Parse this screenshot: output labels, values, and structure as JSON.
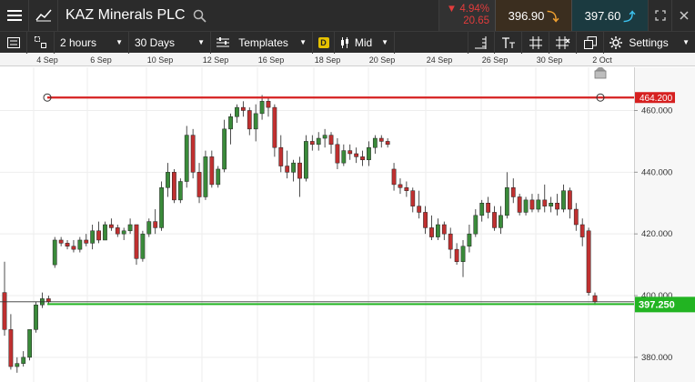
{
  "header": {
    "instrument_name": "KAZ Minerals PLC",
    "change_percent": "4.94%",
    "change_value": "20.65",
    "sell_price": "396.90",
    "buy_price": "397.60"
  },
  "toolbar": {
    "interval": "2 hours",
    "range": "30 Days",
    "templates_label": "Templates",
    "price_type_badge": "D",
    "price_type": "Mid",
    "settings_label": "Settings"
  },
  "chart_data": {
    "type": "candlestick",
    "x_tick_labels": [
      "4 Sep",
      "6 Sep",
      "10 Sep",
      "12 Sep",
      "16 Sep",
      "18 Sep",
      "20 Sep",
      "24 Sep",
      "26 Sep",
      "30 Sep",
      "2 Oct"
    ],
    "y_tick_labels": [
      "460.000",
      "440.000",
      "420.000",
      "400.000",
      "380.000"
    ],
    "y_ticks": [
      460,
      440,
      420,
      400,
      380
    ],
    "ylim": [
      372,
      474
    ],
    "upper_line": {
      "value": 464.2,
      "label": "464.200",
      "color": "#d62020"
    },
    "lower_line": {
      "value": 397.25,
      "label": "397.250",
      "color": "#22b422"
    },
    "current_line": {
      "value": 398.0
    },
    "up_color": "#3a8a3a",
    "down_color": "#c03030",
    "candles": [
      [
        401,
        411,
        387,
        389
      ],
      [
        389,
        394,
        376,
        377
      ],
      [
        377,
        380,
        375,
        378
      ],
      [
        378,
        382,
        377,
        380
      ],
      [
        380,
        389,
        379,
        389
      ],
      [
        389,
        398,
        388,
        397
      ],
      [
        397,
        401,
        396,
        399
      ],
      [
        399,
        400,
        397,
        398
      ],
      [
        410,
        419,
        409,
        418
      ],
      [
        418,
        419,
        416,
        417
      ],
      [
        417,
        418,
        415,
        416
      ],
      [
        416,
        418,
        414,
        415
      ],
      [
        415,
        419,
        414,
        418
      ],
      [
        418,
        420,
        416,
        417
      ],
      [
        417,
        423,
        415,
        421
      ],
      [
        421,
        424,
        417,
        418
      ],
      [
        418,
        424,
        418,
        423
      ],
      [
        423,
        425,
        421,
        422
      ],
      [
        422,
        423,
        419,
        420
      ],
      [
        420,
        422,
        418,
        421
      ],
      [
        421,
        425,
        420,
        423
      ],
      [
        423,
        423,
        410,
        412
      ],
      [
        412,
        421,
        411,
        420
      ],
      [
        420,
        425,
        419,
        424
      ],
      [
        424,
        428,
        420,
        422
      ],
      [
        422,
        437,
        421,
        435
      ],
      [
        435,
        443,
        432,
        440
      ],
      [
        440,
        441,
        430,
        431
      ],
      [
        431,
        438,
        430,
        437
      ],
      [
        437,
        455,
        435,
        452
      ],
      [
        452,
        454,
        438,
        440
      ],
      [
        440,
        443,
        430,
        432
      ],
      [
        432,
        447,
        431,
        445
      ],
      [
        445,
        447,
        435,
        436
      ],
      [
        436,
        442,
        435,
        441
      ],
      [
        441,
        457,
        440,
        454
      ],
      [
        454,
        459,
        449,
        458
      ],
      [
        458,
        462,
        456,
        461
      ],
      [
        461,
        463,
        458,
        460
      ],
      [
        460,
        461,
        452,
        454
      ],
      [
        454,
        462,
        450,
        459
      ],
      [
        459,
        465,
        457,
        463
      ],
      [
        463,
        464,
        458,
        461
      ],
      [
        461,
        462,
        445,
        448
      ],
      [
        448,
        452,
        440,
        442
      ],
      [
        442,
        447,
        438,
        440
      ],
      [
        440,
        444,
        437,
        443
      ],
      [
        443,
        445,
        432,
        438
      ],
      [
        438,
        452,
        437,
        450
      ],
      [
        450,
        452,
        447,
        449
      ],
      [
        449,
        453,
        447,
        451
      ],
      [
        451,
        454,
        448,
        452
      ],
      [
        452,
        453,
        446,
        449
      ],
      [
        449,
        451,
        441,
        443
      ],
      [
        443,
        449,
        442,
        447
      ],
      [
        447,
        449,
        444,
        446
      ],
      [
        446,
        448,
        443,
        445
      ],
      [
        445,
        447,
        442,
        444
      ],
      [
        444,
        450,
        442,
        448
      ],
      [
        448,
        452,
        446,
        451
      ],
      [
        451,
        452,
        448,
        450
      ],
      [
        450,
        451,
        448,
        449
      ],
      [
        441,
        443,
        434,
        436
      ],
      [
        436,
        438,
        433,
        435
      ],
      [
        435,
        437,
        432,
        434
      ],
      [
        434,
        435,
        427,
        429
      ],
      [
        429,
        434,
        425,
        427
      ],
      [
        427,
        429,
        420,
        422
      ],
      [
        422,
        426,
        418,
        419
      ],
      [
        419,
        425,
        418,
        423
      ],
      [
        423,
        424,
        418,
        420
      ],
      [
        420,
        422,
        412,
        415
      ],
      [
        415,
        417,
        410,
        411
      ],
      [
        411,
        418,
        406,
        416
      ],
      [
        416,
        423,
        414,
        420
      ],
      [
        420,
        428,
        419,
        426
      ],
      [
        426,
        431,
        424,
        430
      ],
      [
        430,
        432,
        425,
        427
      ],
      [
        427,
        429,
        421,
        422
      ],
      [
        422,
        429,
        420,
        426
      ],
      [
        426,
        440,
        425,
        435
      ],
      [
        435,
        438,
        430,
        432
      ],
      [
        432,
        433,
        426,
        427
      ],
      [
        427,
        432,
        426,
        431
      ],
      [
        431,
        433,
        427,
        428
      ],
      [
        428,
        433,
        427,
        431
      ],
      [
        431,
        436,
        427,
        429
      ],
      [
        429,
        432,
        427,
        430
      ],
      [
        430,
        433,
        426,
        428
      ],
      [
        428,
        436,
        427,
        434
      ],
      [
        434,
        435,
        425,
        428
      ],
      [
        428,
        430,
        421,
        423
      ],
      [
        423,
        425,
        416,
        419
      ],
      [
        421,
        422,
        400,
        401
      ],
      [
        400,
        401,
        397,
        398
      ]
    ]
  }
}
